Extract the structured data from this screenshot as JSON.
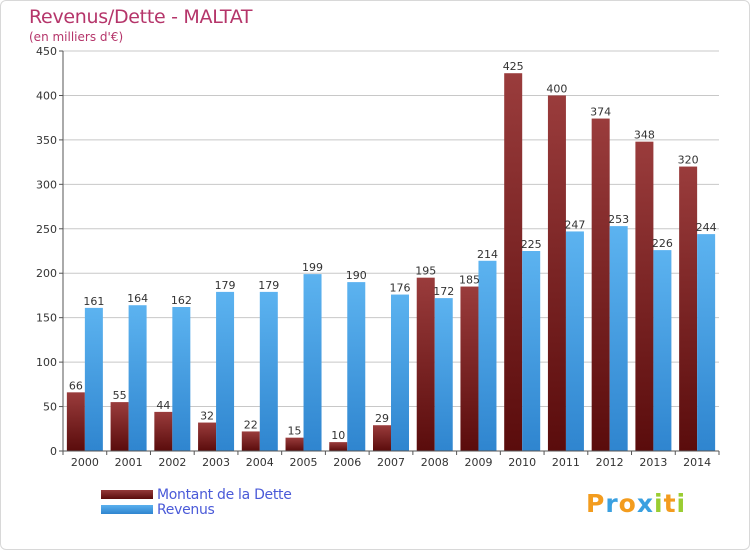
{
  "title": "Revenus/Dette - MALTAT",
  "subtitle": "(en milliers d'€)",
  "logo": {
    "letters": [
      {
        "ch": "P",
        "color": "#f39c1e"
      },
      {
        "ch": "r",
        "color": "#3aa0e0"
      },
      {
        "ch": "o",
        "color": "#f39c1e"
      },
      {
        "ch": "x",
        "color": "#3aa0e0"
      },
      {
        "ch": "i",
        "color": "#9acd32"
      },
      {
        "ch": "t",
        "color": "#f39c1e"
      },
      {
        "ch": "i",
        "color": "#9acd32"
      }
    ]
  },
  "colors": {
    "dette": "#6b1515",
    "dette_light": "#943a3a",
    "revenus": "#3a8fd8",
    "revenus_light": "#5ab0ee",
    "axis_text": "#333333",
    "grid": "#c8c8c8"
  },
  "chart_data": {
    "type": "bar",
    "title": "Revenus/Dette - MALTAT",
    "subtitle": "(en milliers d'€)",
    "xlabel": "",
    "ylabel": "",
    "ylim": [
      0,
      450
    ],
    "yticks": [
      0,
      50,
      100,
      150,
      200,
      250,
      300,
      350,
      400,
      450
    ],
    "grid": true,
    "legend_position": "bottom-left",
    "categories": [
      "2000",
      "2001",
      "2002",
      "2003",
      "2004",
      "2005",
      "2006",
      "2007",
      "2008",
      "2009",
      "2010",
      "2011",
      "2012",
      "2013",
      "2014"
    ],
    "series": [
      {
        "name": "Montant de la Dette",
        "values": [
          66,
          55,
          44,
          32,
          22,
          15,
          10,
          29,
          195,
          185,
          425,
          400,
          374,
          348,
          320
        ]
      },
      {
        "name": "Revenus",
        "values": [
          161,
          164,
          162,
          179,
          179,
          199,
          190,
          176,
          172,
          214,
          225,
          247,
          253,
          226,
          244
        ]
      }
    ]
  }
}
